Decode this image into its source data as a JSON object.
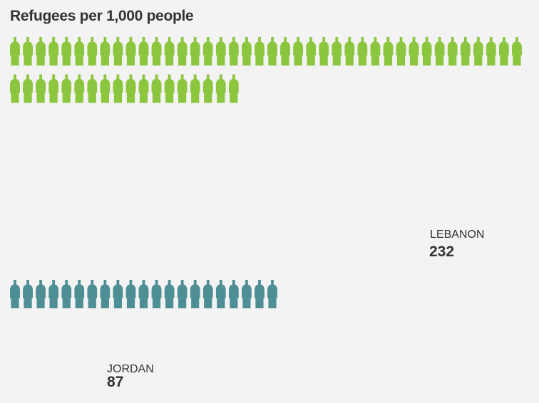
{
  "title": "Refugees per 1,000 people",
  "chart_data": {
    "type": "pictogram",
    "title": "Refugees per 1,000 people",
    "icon": "person-icon",
    "per_row": 40,
    "series": [
      {
        "name": "LEBANON",
        "value": 232,
        "value_label": "232",
        "color": "#8cc63f"
      },
      {
        "name": "JORDAN",
        "value": 87,
        "value_label": "87",
        "color": "#4e8f96"
      }
    ]
  }
}
